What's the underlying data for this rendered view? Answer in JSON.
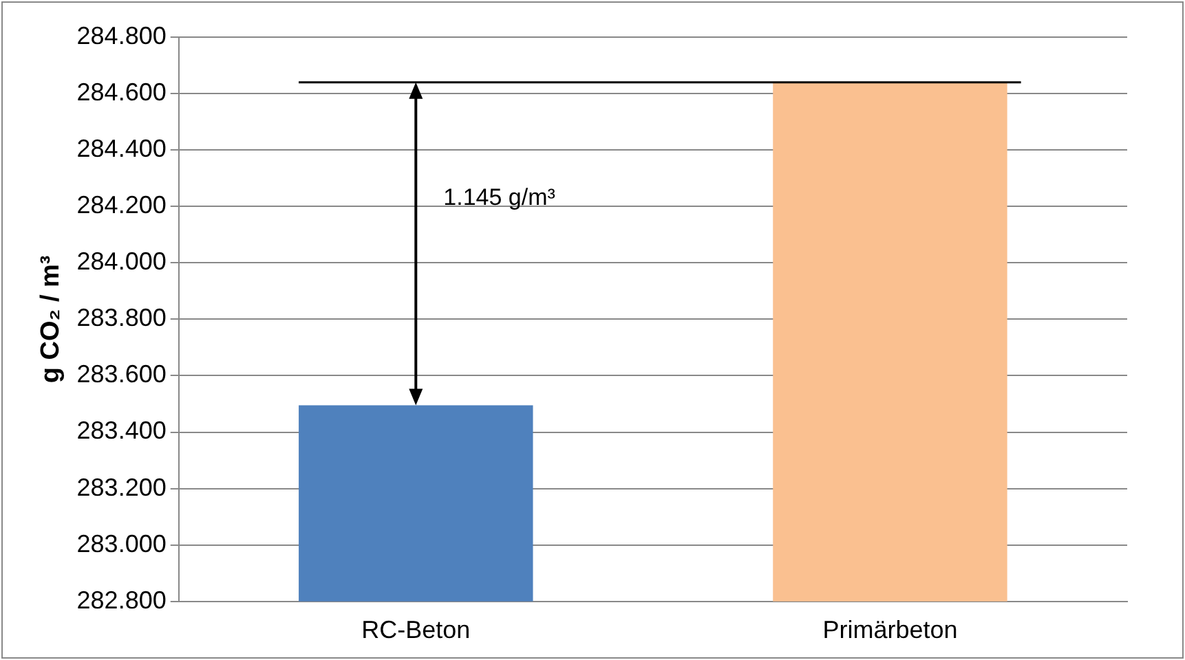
{
  "chart_data": {
    "type": "bar",
    "ylabel": "g CO₂ / m³",
    "categories": [
      "RC-Beton",
      "Primärbeton"
    ],
    "values": [
      283495,
      284640
    ],
    "colors": [
      "#4f81bd",
      "#fac090"
    ],
    "ylim": [
      282800,
      284800
    ],
    "yticks": [
      {
        "value": 282800,
        "label": "282.800"
      },
      {
        "value": 283000,
        "label": "283.000"
      },
      {
        "value": 283200,
        "label": "283.200"
      },
      {
        "value": 283400,
        "label": "283.400"
      },
      {
        "value": 283600,
        "label": "283.600"
      },
      {
        "value": 283800,
        "label": "283.800"
      },
      {
        "value": 284000,
        "label": "284.000"
      },
      {
        "value": 284200,
        "label": "284.200"
      },
      {
        "value": 284400,
        "label": "284.400"
      },
      {
        "value": 284600,
        "label": "284.600"
      },
      {
        "value": 284800,
        "label": "284.800"
      }
    ],
    "grid": "y",
    "legend": false,
    "ref_lines": [
      {
        "axis": "y",
        "value": 284640,
        "color": "#000000"
      }
    ],
    "annotations": [
      "1.145 g/m³"
    ]
  }
}
